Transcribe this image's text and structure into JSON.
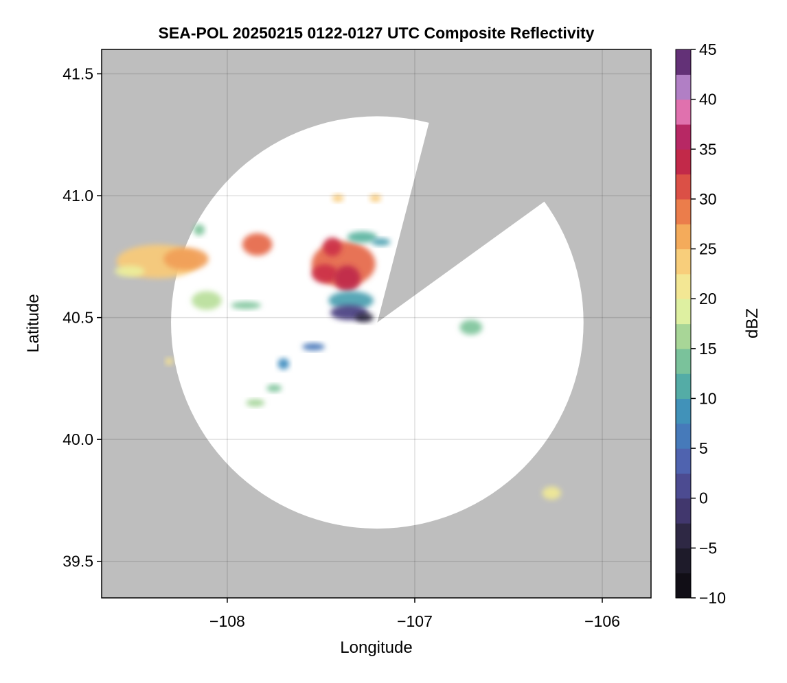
{
  "chart_data": {
    "type": "heatmap",
    "title": "SEA-POL 20250215 0122-0127 UTC Composite Reflectivity",
    "xlabel": "Longitude",
    "ylabel": "Latitude",
    "xlim": [
      -108.67,
      -105.74
    ],
    "ylim": [
      39.35,
      41.6
    ],
    "x_ticks": [
      -108,
      -107,
      -106
    ],
    "x_tick_labels": [
      "−108",
      "−107",
      "−106"
    ],
    "y_ticks": [
      39.5,
      40.0,
      40.5,
      41.0,
      41.5
    ],
    "y_tick_labels": [
      "39.5",
      "40.0",
      "40.5",
      "41.0",
      "41.5"
    ],
    "grid": true,
    "radar_site": {
      "lon": -107.2,
      "lat": 40.48
    },
    "range_radius_deg": 1.1,
    "blocked_sectors": [
      {
        "from_lon": -106.85,
        "from_lat": 41.52,
        "to_lon": -106.05,
        "to_lat": 41.12
      }
    ],
    "colorbar": {
      "label": "dBZ",
      "range": [
        -10,
        45
      ],
      "step": 2.5,
      "ticks": [
        -10,
        -5,
        0,
        5,
        10,
        15,
        20,
        25,
        30,
        35,
        40,
        45
      ],
      "tick_labels": [
        "−10",
        "−5",
        "0",
        "5",
        "10",
        "15",
        "20",
        "25",
        "30",
        "35",
        "40",
        "45"
      ]
    },
    "echoes": [
      {
        "lon": -108.37,
        "lat": 40.73,
        "rx": 0.22,
        "ry": 0.09,
        "dbz": 24
      },
      {
        "lon": -108.22,
        "lat": 40.74,
        "rx": 0.12,
        "ry": 0.06,
        "dbz": 27
      },
      {
        "lon": -108.52,
        "lat": 40.69,
        "rx": 0.08,
        "ry": 0.03,
        "dbz": 20
      },
      {
        "lon": -108.15,
        "lat": 40.86,
        "rx": 0.03,
        "ry": 0.03,
        "dbz": 14
      },
      {
        "lon": -107.84,
        "lat": 40.8,
        "rx": 0.08,
        "ry": 0.06,
        "dbz": 30
      },
      {
        "lon": -107.38,
        "lat": 40.72,
        "rx": 0.17,
        "ry": 0.12,
        "dbz": 30
      },
      {
        "lon": -107.48,
        "lat": 40.68,
        "rx": 0.07,
        "ry": 0.05,
        "dbz": 33
      },
      {
        "lon": -107.36,
        "lat": 40.66,
        "rx": 0.07,
        "ry": 0.07,
        "dbz": 34
      },
      {
        "lon": -107.44,
        "lat": 40.79,
        "rx": 0.05,
        "ry": 0.05,
        "dbz": 33
      },
      {
        "lon": -107.34,
        "lat": 40.57,
        "rx": 0.12,
        "ry": 0.05,
        "dbz": 10
      },
      {
        "lon": -107.35,
        "lat": 40.52,
        "rx": 0.1,
        "ry": 0.04,
        "dbz": 0
      },
      {
        "lon": -107.27,
        "lat": 40.5,
        "rx": 0.05,
        "ry": 0.025,
        "dbz": -4
      },
      {
        "lon": -107.28,
        "lat": 40.83,
        "rx": 0.08,
        "ry": 0.03,
        "dbz": 12
      },
      {
        "lon": -107.18,
        "lat": 40.81,
        "rx": 0.05,
        "ry": 0.02,
        "dbz": 10
      },
      {
        "lon": -107.41,
        "lat": 40.99,
        "rx": 0.03,
        "ry": 0.02,
        "dbz": 24
      },
      {
        "lon": -107.21,
        "lat": 40.99,
        "rx": 0.03,
        "ry": 0.02,
        "dbz": 24
      },
      {
        "lon": -108.11,
        "lat": 40.57,
        "rx": 0.08,
        "ry": 0.05,
        "dbz": 17
      },
      {
        "lon": -107.9,
        "lat": 40.55,
        "rx": 0.08,
        "ry": 0.02,
        "dbz": 14
      },
      {
        "lon": -108.31,
        "lat": 40.32,
        "rx": 0.02,
        "ry": 0.02,
        "dbz": 22
      },
      {
        "lon": -107.7,
        "lat": 40.31,
        "rx": 0.03,
        "ry": 0.03,
        "dbz": 8
      },
      {
        "lon": -107.54,
        "lat": 40.38,
        "rx": 0.06,
        "ry": 0.02,
        "dbz": 6
      },
      {
        "lon": -107.75,
        "lat": 40.21,
        "rx": 0.04,
        "ry": 0.02,
        "dbz": 14
      },
      {
        "lon": -107.85,
        "lat": 40.15,
        "rx": 0.05,
        "ry": 0.02,
        "dbz": 16
      },
      {
        "lon": -106.7,
        "lat": 40.46,
        "rx": 0.06,
        "ry": 0.04,
        "dbz": 14
      },
      {
        "lon": -106.27,
        "lat": 39.78,
        "rx": 0.05,
        "ry": 0.035,
        "dbz": 21
      }
    ]
  }
}
